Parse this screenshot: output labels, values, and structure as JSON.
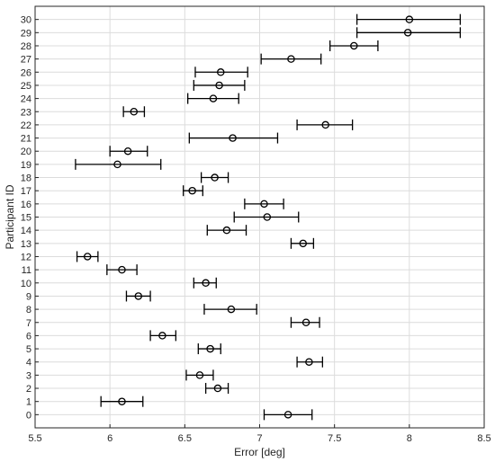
{
  "chart_data": {
    "type": "scatter",
    "title": "",
    "xlabel": "Error [deg]",
    "ylabel": "Participant ID",
    "xlim": [
      5.5,
      8.5
    ],
    "ylim": [
      -1,
      31
    ],
    "x_ticks": [
      "5.5",
      "6",
      "6.5",
      "7",
      "7.5",
      "8",
      "8.5"
    ],
    "y_ticks": [
      "0",
      "1",
      "2",
      "3",
      "4",
      "5",
      "6",
      "7",
      "8",
      "9",
      "10",
      "11",
      "12",
      "13",
      "14",
      "15",
      "16",
      "17",
      "18",
      "19",
      "20",
      "21",
      "22",
      "23",
      "24",
      "25",
      "26",
      "27",
      "28",
      "29",
      "30"
    ],
    "grid": true,
    "marker": "circle",
    "series": [
      {
        "points": [
          {
            "id": 0,
            "mean": 7.19,
            "low": 7.03,
            "high": 7.35
          },
          {
            "id": 1,
            "mean": 6.08,
            "low": 5.94,
            "high": 6.22
          },
          {
            "id": 2,
            "mean": 6.72,
            "low": 6.64,
            "high": 6.79
          },
          {
            "id": 3,
            "mean": 6.6,
            "low": 6.51,
            "high": 6.69
          },
          {
            "id": 4,
            "mean": 7.33,
            "low": 7.25,
            "high": 7.42
          },
          {
            "id": 5,
            "mean": 6.67,
            "low": 6.59,
            "high": 6.74
          },
          {
            "id": 6,
            "mean": 6.35,
            "low": 6.27,
            "high": 6.44
          },
          {
            "id": 7,
            "mean": 7.31,
            "low": 7.21,
            "high": 7.4
          },
          {
            "id": 8,
            "mean": 6.81,
            "low": 6.63,
            "high": 6.98
          },
          {
            "id": 9,
            "mean": 6.19,
            "low": 6.11,
            "high": 6.27
          },
          {
            "id": 10,
            "mean": 6.64,
            "low": 6.56,
            "high": 6.71
          },
          {
            "id": 11,
            "mean": 6.08,
            "low": 5.98,
            "high": 6.18
          },
          {
            "id": 12,
            "mean": 5.85,
            "low": 5.78,
            "high": 5.92
          },
          {
            "id": 13,
            "mean": 7.29,
            "low": 7.21,
            "high": 7.36
          },
          {
            "id": 14,
            "mean": 6.78,
            "low": 6.65,
            "high": 6.91
          },
          {
            "id": 15,
            "mean": 7.05,
            "low": 6.83,
            "high": 7.26
          },
          {
            "id": 16,
            "mean": 7.03,
            "low": 6.9,
            "high": 7.16
          },
          {
            "id": 17,
            "mean": 6.55,
            "low": 6.49,
            "high": 6.62
          },
          {
            "id": 18,
            "mean": 6.7,
            "low": 6.61,
            "high": 6.79
          },
          {
            "id": 19,
            "mean": 6.05,
            "low": 5.77,
            "high": 6.34
          },
          {
            "id": 20,
            "mean": 6.12,
            "low": 6.0,
            "high": 6.25
          },
          {
            "id": 21,
            "mean": 6.82,
            "low": 6.53,
            "high": 7.12
          },
          {
            "id": 22,
            "mean": 7.44,
            "low": 7.25,
            "high": 7.62
          },
          {
            "id": 23,
            "mean": 6.16,
            "low": 6.09,
            "high": 6.23
          },
          {
            "id": 24,
            "mean": 6.69,
            "low": 6.52,
            "high": 6.86
          },
          {
            "id": 25,
            "mean": 6.73,
            "low": 6.56,
            "high": 6.9
          },
          {
            "id": 26,
            "mean": 6.74,
            "low": 6.57,
            "high": 6.92
          },
          {
            "id": 27,
            "mean": 7.21,
            "low": 7.01,
            "high": 7.41
          },
          {
            "id": 28,
            "mean": 7.63,
            "low": 7.47,
            "high": 7.79
          },
          {
            "id": 29,
            "mean": 7.99,
            "low": 7.65,
            "high": 8.34
          },
          {
            "id": 30,
            "mean": 8.0,
            "low": 7.65,
            "high": 8.34
          }
        ]
      }
    ]
  }
}
